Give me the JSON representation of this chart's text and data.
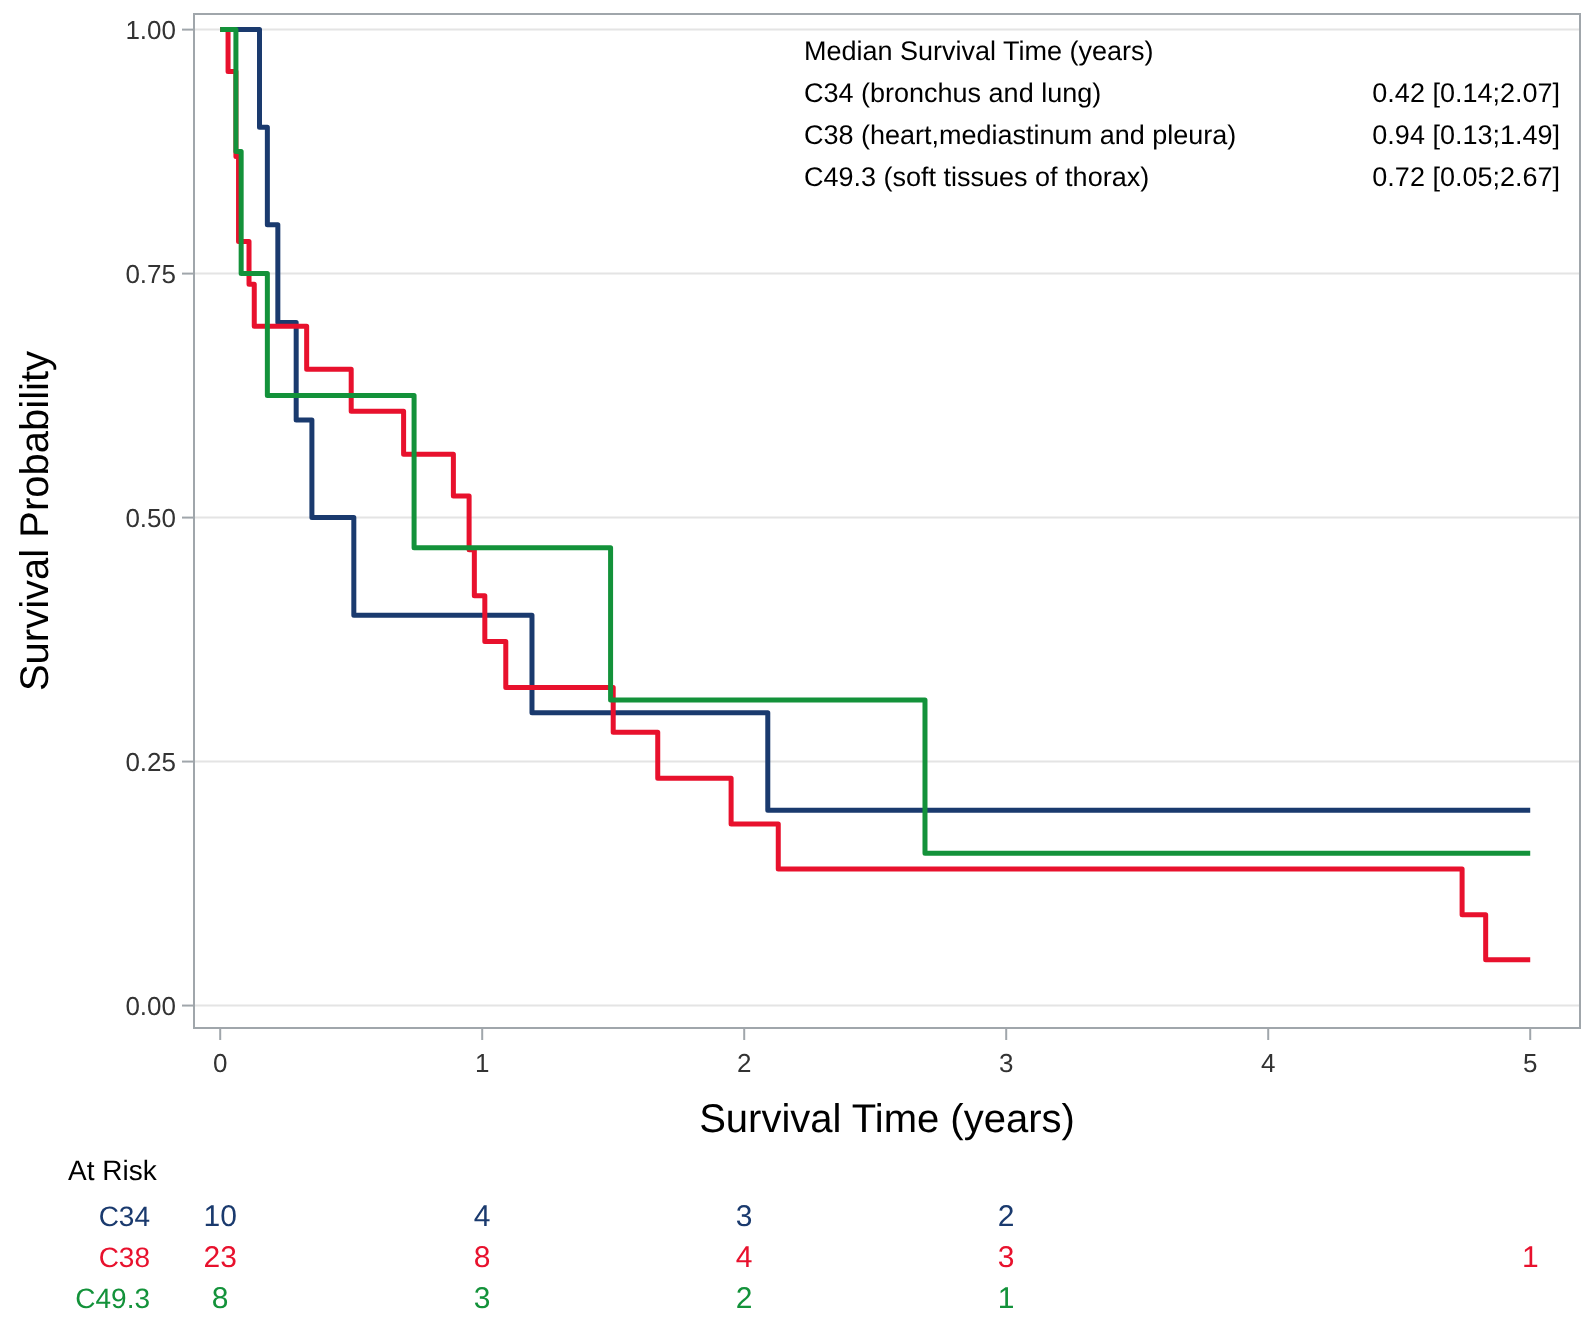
{
  "chart_data": {
    "type": "step",
    "xlabel": "Survival Time (years)",
    "ylabel": "Survival Probability",
    "legend_title": "Median Survival Time (years)",
    "legend": "bottom left",
    "grid": "y",
    "xlim": [
      -0.1,
      5.19
    ],
    "xticks": [
      0,
      1,
      2,
      3,
      4,
      5
    ],
    "ylim": [
      -0.023,
      1.016
    ],
    "yticks": [
      {
        "value": 0,
        "label": "0.00"
      },
      {
        "value": 0.25,
        "label": "0.25"
      },
      {
        "value": 0.5,
        "label": "0.50"
      },
      {
        "value": 0.75,
        "label": "0.75"
      },
      {
        "value": 1,
        "label": "1.00"
      }
    ],
    "series": [
      {
        "name": "C34",
        "color": "#1a3a6e",
        "x": [
          0,
          0.15,
          0.18,
          0.22,
          0.29,
          0.35,
          0.51,
          1.19,
          2.09,
          5
        ],
        "values": [
          1,
          0.9,
          0.8,
          0.7,
          0.6,
          0.5,
          0.4,
          0.3,
          0.2,
          0.2
        ]
      },
      {
        "name": "C38",
        "color": "#e8112d",
        "x": [
          0,
          0.03,
          0.06,
          0.07,
          0.11,
          0.13,
          0.33,
          0.5,
          0.7,
          0.89,
          0.95,
          0.97,
          1.01,
          1.09,
          1.5,
          1.67,
          1.95,
          2.13,
          4.74,
          4.83,
          5
        ],
        "values": [
          1,
          0.957,
          0.87,
          0.783,
          0.739,
          0.696,
          0.652,
          0.609,
          0.565,
          0.522,
          0.467,
          0.42,
          0.373,
          0.326,
          0.28,
          0.233,
          0.186,
          0.14,
          0.093,
          0.047,
          0.047
        ]
      },
      {
        "name": "C49.3",
        "color": "#13923a",
        "x": [
          0,
          0.06,
          0.08,
          0.18,
          0.74,
          1.49,
          2.69,
          5
        ],
        "values": [
          1,
          0.875,
          0.75,
          0.625,
          0.469,
          0.313,
          0.156,
          0.156
        ]
      }
    ],
    "annotations": [
      "C34 (bronchus and lung)",
      "C38 (heart,mediastinum and pleura)",
      "C49.3 (soft tissues of thorax)",
      "0.42 [0.14;2.07]",
      "0.94 [0.13;1.49]",
      "0.72 [0.05;2.67]",
      "At Risk",
      "10",
      "4",
      "3",
      "2",
      null,
      null,
      "23",
      "8",
      "4",
      "3",
      null,
      "1",
      "8",
      "3",
      "2",
      "1",
      null,
      null
    ]
  }
}
